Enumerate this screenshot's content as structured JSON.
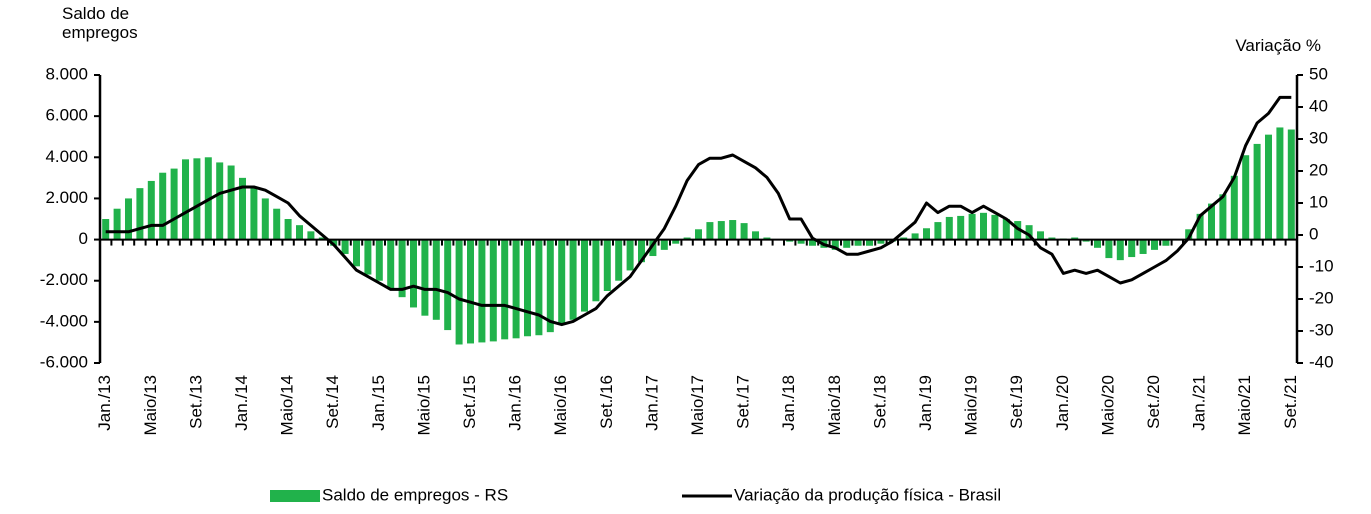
{
  "chart_data": {
    "type": "bar",
    "ylabel": "Saldo de empregos",
    "y2label": "Variação %",
    "categories": [
      "Jan./13",
      null,
      null,
      null,
      "Maio/13",
      null,
      null,
      null,
      "Set./13",
      null,
      null,
      null,
      "Jan./14",
      null,
      null,
      null,
      "Maio/14",
      null,
      null,
      null,
      "Set./14",
      null,
      null,
      null,
      "Jan./15",
      null,
      null,
      null,
      "Maio/15",
      null,
      null,
      null,
      "Set./15",
      null,
      null,
      null,
      "Jan./16",
      null,
      null,
      null,
      "Maio/16",
      null,
      null,
      null,
      "Set./16",
      null,
      null,
      null,
      "Jan./17",
      null,
      null,
      null,
      "Maio/17",
      null,
      null,
      null,
      "Set./17",
      null,
      null,
      null,
      "Jan./18",
      null,
      null,
      null,
      "Maio/18",
      null,
      null,
      null,
      "Set./18",
      null,
      null,
      null,
      "Jan./19",
      null,
      null,
      null,
      "Maio/19",
      null,
      null,
      null,
      "Set./19",
      null,
      null,
      null,
      "Jan./20",
      null,
      null,
      null,
      "Maio/20",
      null,
      null,
      null,
      "Set./20",
      null,
      null,
      null,
      "Jan./21",
      null,
      null,
      null,
      "Maio/21",
      null,
      null,
      null,
      "Set./21"
    ],
    "series": [
      {
        "name": "Saldo de empregos - RS",
        "type": "bar",
        "color": "#21b24b",
        "values": [
          1000,
          1500,
          2000,
          2500,
          2850,
          3250,
          3450,
          3900,
          3950,
          4000,
          3750,
          3600,
          3000,
          2500,
          2000,
          1500,
          1000,
          700,
          400,
          100,
          -300,
          -700,
          -1300,
          -1700,
          -2000,
          -2400,
          -2800,
          -3300,
          -3700,
          -3900,
          -4400,
          -5100,
          -5050,
          -5000,
          -4950,
          -4850,
          -4800,
          -4700,
          -4650,
          -4500,
          -4100,
          -3900,
          -3500,
          -3000,
          -2500,
          -2000,
          -1500,
          -1100,
          -800,
          -500,
          -200,
          100,
          500,
          850,
          900,
          950,
          800,
          400,
          100,
          0,
          -100,
          -200,
          -300,
          -400,
          -500,
          -400,
          -300,
          -300,
          -200,
          -100,
          100,
          300,
          550,
          850,
          1100,
          1150,
          1250,
          1300,
          1200,
          1000,
          900,
          700,
          400,
          100,
          50,
          100,
          -100,
          -400,
          -900,
          -1000,
          -850,
          -700,
          -500,
          -300,
          0,
          500,
          1250,
          1750,
          2200,
          3100,
          4100,
          4650,
          5100,
          5450,
          5350
        ]
      },
      {
        "name": "Variação da produção física - Brasil",
        "type": "line",
        "axis": "y2",
        "color": "#000000",
        "values": [
          1,
          1,
          1,
          2,
          3,
          3,
          5,
          7,
          9,
          11,
          13,
          14,
          15,
          15,
          14,
          12,
          10,
          6,
          3,
          0,
          -3,
          -7,
          -11,
          -13,
          -15,
          -17,
          -17,
          -16,
          -17,
          -17,
          -18,
          -20,
          -21,
          -22,
          -22,
          -22,
          -23,
          -24,
          -25,
          -27,
          -28,
          -27,
          -25,
          -23,
          -19,
          -16,
          -13,
          -8,
          -3,
          2,
          9,
          17,
          22,
          24,
          24,
          25,
          23,
          21,
          18,
          13,
          5,
          5,
          -1,
          -3,
          -4,
          -6,
          -6,
          -5,
          -4,
          -2,
          1,
          4,
          10,
          7,
          9,
          9,
          7,
          9,
          7,
          5,
          2,
          0,
          -4,
          -6,
          -12,
          -11,
          -12,
          -11,
          -13,
          -15,
          -14,
          -12,
          -10,
          -8,
          -5,
          -1,
          6,
          9,
          12,
          18,
          28,
          35,
          38,
          43,
          43
        ]
      }
    ],
    "ylim": [
      -6000,
      8000
    ],
    "yticks": [
      {
        "value": -6000,
        "label": "-6.000"
      },
      {
        "value": -4000,
        "label": "-4.000"
      },
      {
        "value": -2000,
        "label": "-2.000"
      },
      0,
      {
        "value": 2000,
        "label": "2.000"
      },
      {
        "value": 4000,
        "label": "4.000"
      },
      {
        "value": 6000,
        "label": "6.000"
      },
      {
        "value": 8000,
        "label": "8.000"
      }
    ],
    "y2lim": [
      -40,
      50
    ],
    "y2ticks": [
      -40,
      -30,
      -20,
      -10,
      0,
      10,
      20,
      30,
      40,
      50
    ],
    "grid": false,
    "legend": "bottom"
  }
}
